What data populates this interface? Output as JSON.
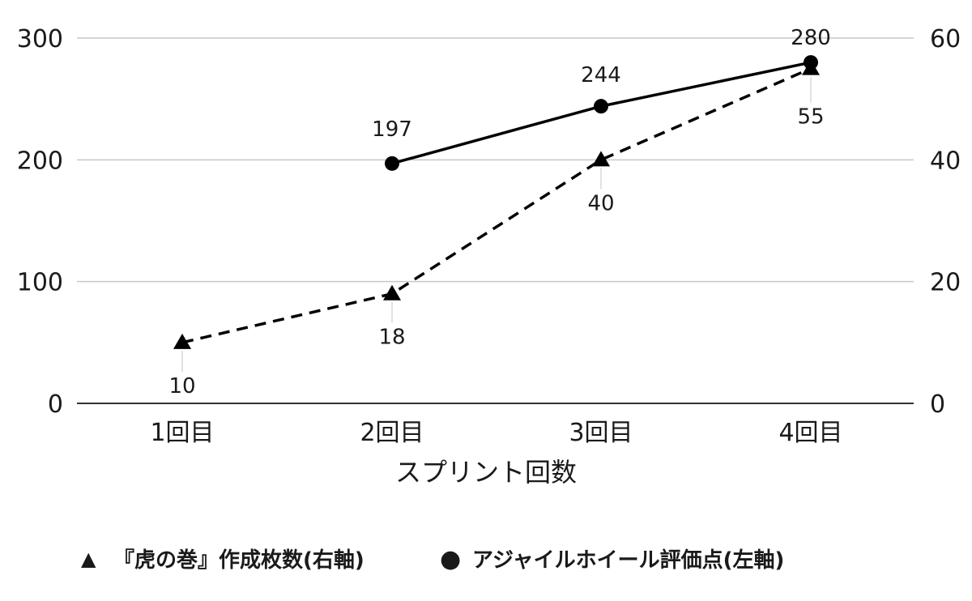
{
  "chart_data": {
    "type": "line",
    "categories": [
      "1回目",
      "2回目",
      "3回目",
      "4回目"
    ],
    "xlabel": "スプリント回数",
    "title": "",
    "left_axis": {
      "ylim": [
        0,
        300
      ],
      "ticks": [
        "0",
        "100",
        "200",
        "300"
      ]
    },
    "right_axis": {
      "ylim": [
        0,
        60
      ],
      "ticks": [
        "0",
        "20",
        "40",
        "60"
      ]
    },
    "grid": true,
    "legend_position": "bottom",
    "series": [
      {
        "name": "『虎の巻』作成枚数(右軸)",
        "axis": "right",
        "marker": "triangle",
        "line_style": "dashed",
        "color": "#000000",
        "values": [
          10,
          18,
          40,
          55
        ],
        "labels": [
          "10",
          "18",
          "40",
          "55"
        ]
      },
      {
        "name": "アジャイルホイール評価点(左軸)",
        "axis": "left",
        "marker": "circle",
        "line_style": "solid",
        "color": "#000000",
        "values": [
          null,
          197,
          244,
          280
        ],
        "labels": [
          "",
          "197",
          "244",
          "280"
        ]
      }
    ],
    "legend_markers": [
      "▲",
      "●"
    ]
  }
}
